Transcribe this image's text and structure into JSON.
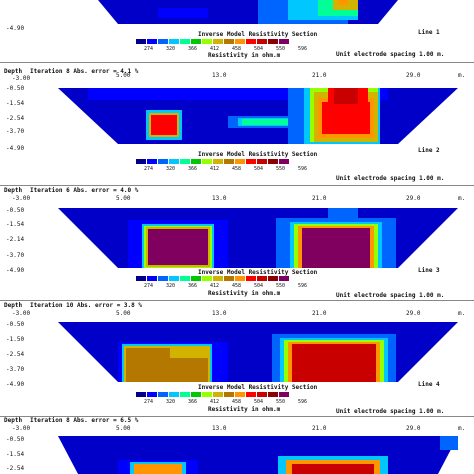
{
  "panels": [
    {
      "depth_label": "",
      "iteration": "",
      "depth_ticks": [
        "",
        "-4.90"
      ],
      "line_label": "Line 1",
      "x_ticks": [],
      "spacing": "Unit electrode spacing 1.00 m."
    },
    {
      "depth_label": "Depth",
      "iteration": "Iteration 8 Abs. error = 4.1 %",
      "depth_ticks": [
        "-0.50",
        "-1.54",
        "-2.54",
        "-3.70",
        "-4.90"
      ],
      "start_tick": "-3.00",
      "line_label": "Line 2",
      "x_ticks": [
        "5.00",
        "13.0",
        "21.0",
        "29.0"
      ],
      "unit": "m.",
      "spacing": "Unit electrode spacing 1.00 m."
    },
    {
      "depth_label": "Depth",
      "iteration": "Iteration 6 Abs. error = 4.0 %",
      "depth_ticks": [
        "-0.50",
        "-1.54",
        "-2.14",
        "-3.70",
        "-4.90"
      ],
      "start_tick": "-3.00",
      "line_label": "Line 3",
      "x_ticks": [
        "5.00",
        "13.0",
        "21.0",
        "29.0"
      ],
      "unit": "m.",
      "spacing": "Unit electrode spacing 1.00 m."
    },
    {
      "depth_label": "Depth",
      "iteration": "Iteration 10 Abs. error = 3.8 %",
      "depth_ticks": [
        "-0.50",
        "-1.50",
        "-2.54",
        "-3.70",
        "-4.90"
      ],
      "start_tick": "-3.00",
      "line_label": "Line 4",
      "x_ticks": [
        "5.00",
        "13.0",
        "21.0",
        "29.0"
      ],
      "unit": "m.",
      "spacing": "Unit electrode spacing 1.00 m."
    },
    {
      "depth_label": "Depth",
      "iteration": "Iteration 8 Abs. error = 6.5 %",
      "depth_ticks": [
        "-0.50",
        "-1.54",
        "-2.54"
      ],
      "start_tick": "-3.00",
      "line_label": "",
      "x_ticks": [
        "5.00",
        "13.0",
        "21.0",
        "29.0"
      ],
      "unit": "m.",
      "spacing": ""
    }
  ],
  "legend": {
    "title": "Inverse Model Resistivity Section",
    "values": [
      "274",
      "320",
      "366",
      "412",
      "458",
      "504",
      "550",
      "596"
    ],
    "caption": "Resistivity in ohm.m",
    "colors": [
      "#00008b",
      "#0000ff",
      "#0064ff",
      "#00c8ff",
      "#00ff96",
      "#00c800",
      "#96ff00",
      "#d2b400",
      "#b47800",
      "#ff9600",
      "#ff0000",
      "#c80000",
      "#8b0000",
      "#800060"
    ]
  }
}
